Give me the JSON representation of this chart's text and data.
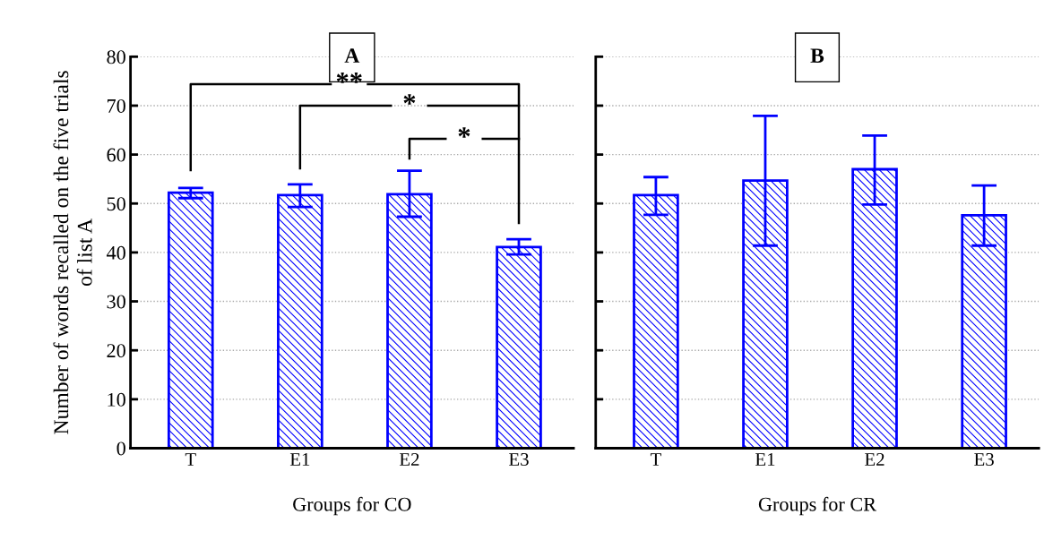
{
  "chart_data": [
    {
      "type": "bar",
      "title": "A",
      "xlabel": "Groups for CO",
      "ylabel": "Number of words recalled on the five trials\nof list A",
      "categories": [
        "T",
        "E1",
        "E2",
        "E3"
      ],
      "series": [
        {
          "color": "#0000ff",
          "values": [
            52.2,
            51.7,
            51.9,
            41.1
          ],
          "errors": [
            [
              51.1,
              53.2
            ],
            [
              49.3,
              53.9
            ],
            [
              47.3,
              56.7
            ],
            [
              39.6,
              42.7
            ]
          ]
        }
      ],
      "ylim": [
        0,
        80
      ],
      "yticks": [
        0,
        10,
        20,
        30,
        40,
        50,
        60,
        70,
        80
      ],
      "grid": "y",
      "annotations": [
        "**",
        "*",
        "*"
      ]
    },
    {
      "type": "bar",
      "title": "B",
      "xlabel": "Groups for CR",
      "categories": [
        "T",
        "E1",
        "E2",
        "E3"
      ],
      "series": [
        {
          "color": "#0000ff",
          "values": [
            51.7,
            54.7,
            57.0,
            47.6
          ],
          "errors": [
            [
              47.7,
              55.4
            ],
            [
              41.4,
              67.9
            ],
            [
              49.8,
              63.9
            ],
            [
              41.4,
              53.7
            ]
          ]
        }
      ],
      "ylim": [
        0,
        80
      ],
      "yticks": [
        0,
        10,
        20,
        30,
        40,
        50,
        60,
        70,
        80
      ],
      "grid": "y",
      "tick_labels": "x"
    }
  ]
}
